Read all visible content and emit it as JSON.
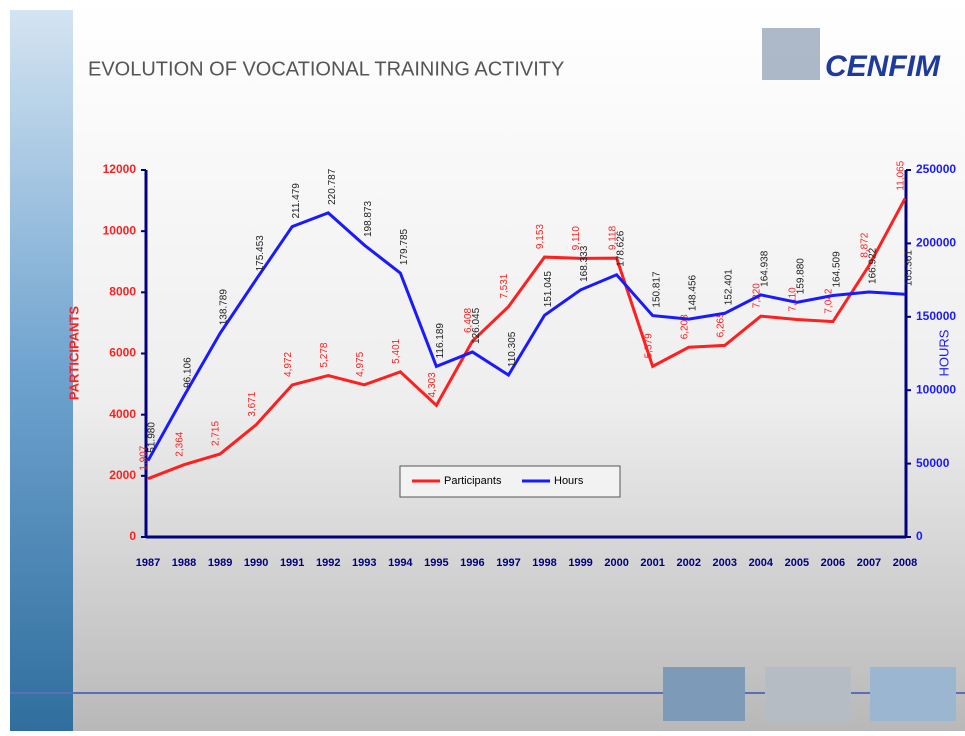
{
  "logo": "CENFIM",
  "chart_data": {
    "type": "line",
    "title": "EVOLUTION OF VOCATIONAL TRAINING ACTIVITY",
    "y_label": "PARTICIPANTS",
    "y2_label": "HOURS",
    "categories": [
      "1987",
      "1988",
      "1989",
      "1990",
      "1991",
      "1992",
      "1993",
      "1994",
      "1995",
      "1996",
      "1997",
      "1998",
      "1999",
      "2000",
      "2001",
      "2002",
      "2003",
      "2004",
      "2005",
      "2006",
      "2007",
      "2008"
    ],
    "series": [
      {
        "name": "Participants",
        "color": "#ff1f1f",
        "values": [
          1907,
          2364,
          2715,
          3671,
          4972,
          5278,
          4975,
          5401,
          4303,
          6408,
          7531,
          9153,
          9110,
          9118,
          5579,
          6203,
          6265,
          7220,
          7110,
          7042,
          8872,
          11065
        ],
        "value_labels": [
          "1,907",
          "2,364",
          "2,715",
          "3,671",
          "4,972",
          "5,278",
          "4,975",
          "5,401",
          "4,303",
          "6,408",
          "7,531",
          "9,153",
          "9,110",
          "9,118",
          "5,579",
          "6,203",
          "6,265",
          "7,220",
          "7,110",
          "7,042",
          "8,872",
          "11,065"
        ]
      },
      {
        "name": "Hours",
        "color": "#1a1aff",
        "axis": "y2",
        "values": [
          51980,
          96106,
          138789,
          175453,
          211479,
          220787,
          198873,
          179785,
          116189,
          126045,
          110305,
          151045,
          168333,
          178626,
          150817,
          148456,
          152401,
          164938,
          159880,
          164509,
          166922,
          165361
        ],
        "value_labels": [
          "51.980",
          "96.106",
          "138.789",
          "175.453",
          "211.479",
          "220.787",
          "198.873",
          "179.785",
          "116.189",
          "126.045",
          "110.305",
          "151.045",
          "168.333",
          "178.626",
          "150.817",
          "148.456",
          "152.401",
          "164.938",
          "159.880",
          "164.509",
          "166.922",
          "165.361"
        ]
      }
    ],
    "ylim": [
      0,
      12000
    ],
    "yticks": [
      0,
      2000,
      4000,
      6000,
      8000,
      10000,
      12000
    ],
    "y2lim": [
      0,
      250000
    ],
    "y2ticks": [
      0,
      50000,
      100000,
      150000,
      200000,
      250000
    ],
    "legend": "bottom-center",
    "grid": false
  }
}
